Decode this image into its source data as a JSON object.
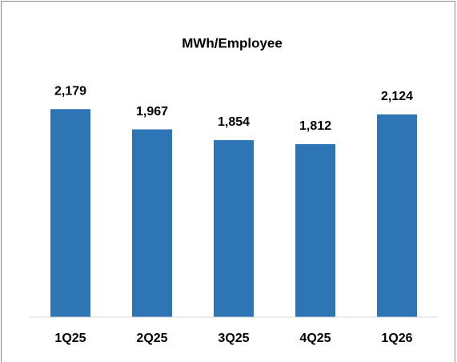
{
  "chart_data": {
    "type": "bar",
    "title": "MWh/Employee",
    "categories": [
      "1Q25",
      "2Q25",
      "3Q25",
      "4Q25",
      "1Q26"
    ],
    "values": [
      2179,
      1967,
      1854,
      1812,
      2124
    ],
    "value_labels": [
      "2,179",
      "1,967",
      "1,854",
      "1,812",
      "2,124"
    ],
    "color": "#2e75b6",
    "ylim": [
      0,
      2500
    ]
  }
}
